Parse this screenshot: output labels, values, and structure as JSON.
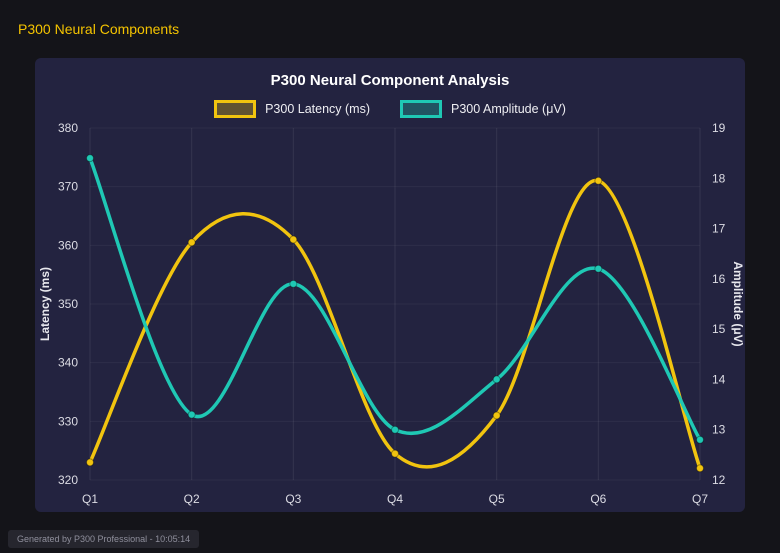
{
  "page": {
    "header_title": "P300 Neural Components",
    "footer_text": "Generated by P300 Professional - 10:05:14"
  },
  "colors": {
    "page_background": "#141419",
    "panel_background": "#232340",
    "header_accent": "#f5c400",
    "latency_series": "#f1c40f",
    "amplitude_series": "#1fc8b4",
    "title_text": "#ffffff",
    "tick_text": "#dcdce4",
    "axis_title_text": "#e8e8ee"
  },
  "chart_data": {
    "type": "line",
    "title": "P300 Neural Component Analysis",
    "categories": [
      "Q1",
      "Q2",
      "Q3",
      "Q4",
      "Q5",
      "Q6",
      "Q7"
    ],
    "series": [
      {
        "name": "P300 Latency (ms)",
        "axis": "left",
        "color": "#f1c40f",
        "values": [
          323,
          360.5,
          361,
          324.5,
          331,
          371,
          322
        ]
      },
      {
        "name": "P300 Amplitude (μV)",
        "axis": "right",
        "color": "#1fc8b4",
        "values": [
          18.4,
          13.3,
          15.9,
          13.0,
          14.0,
          16.2,
          12.8
        ]
      }
    ],
    "left_axis": {
      "label": "Latency (ms)",
      "min": 320,
      "max": 380,
      "ticks": [
        320,
        330,
        340,
        350,
        360,
        370,
        380
      ]
    },
    "right_axis": {
      "label": "Amplitude (μV)",
      "min": 12,
      "max": 19,
      "ticks": [
        12,
        13,
        14,
        15,
        16,
        17,
        18,
        19
      ]
    },
    "grid": true,
    "smooth": true,
    "legend_position": "top"
  }
}
